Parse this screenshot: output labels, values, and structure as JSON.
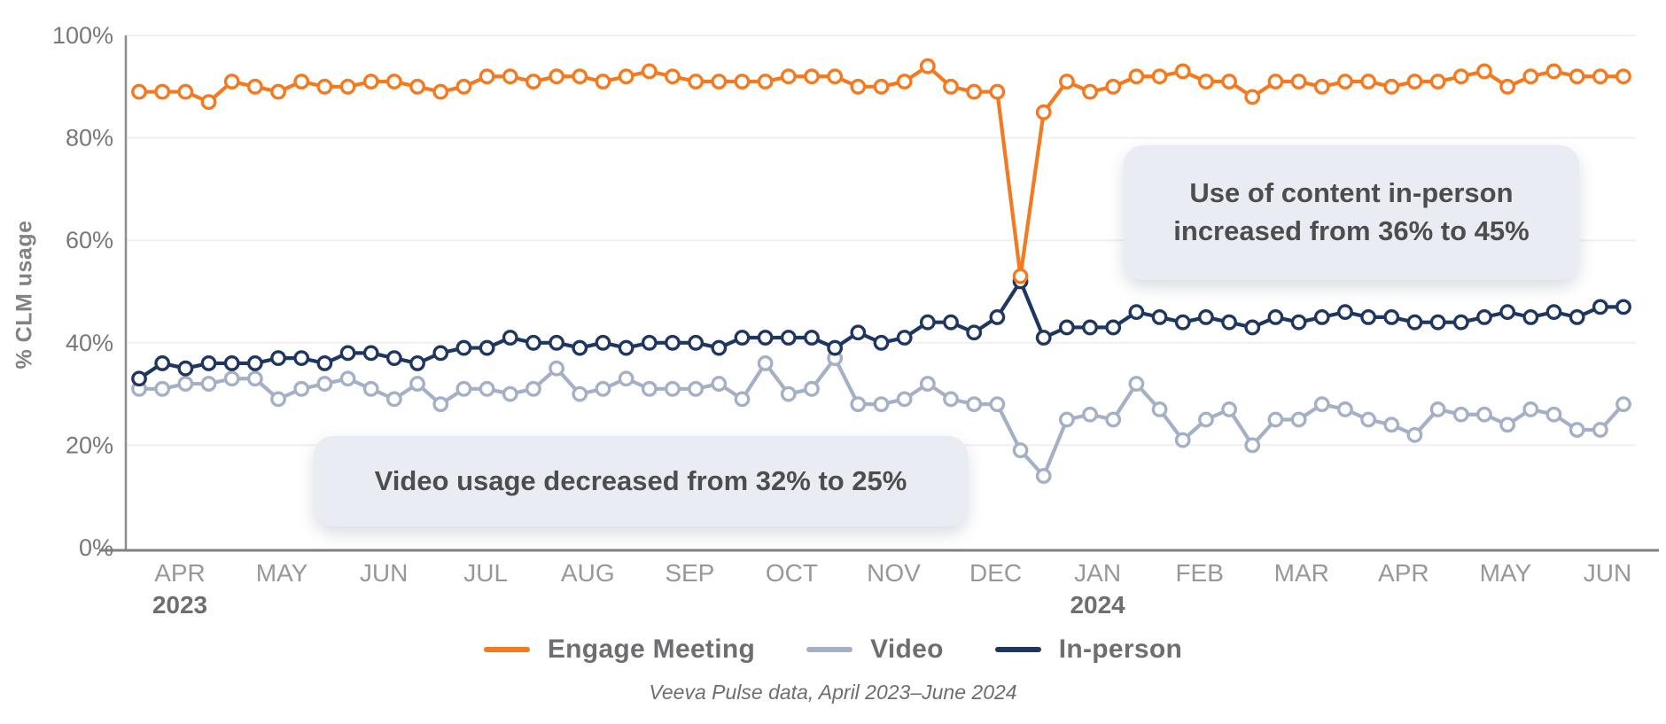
{
  "chart_data": {
    "type": "line",
    "ylabel": "% CLM usage",
    "ylim": [
      0,
      100
    ],
    "grid": true,
    "legend_position": "bottom",
    "y_ticks": [
      {
        "label": "0%",
        "value": 0
      },
      {
        "label": "20%",
        "value": 20
      },
      {
        "label": "40%",
        "value": 40
      },
      {
        "label": "60%",
        "value": 60
      },
      {
        "label": "80%",
        "value": 80
      },
      {
        "label": "100%",
        "value": 100
      }
    ],
    "x_months": [
      {
        "label": "APR",
        "year": "2023"
      },
      {
        "label": "MAY"
      },
      {
        "label": "JUN"
      },
      {
        "label": "JUL"
      },
      {
        "label": "AUG"
      },
      {
        "label": "SEP"
      },
      {
        "label": "OCT"
      },
      {
        "label": "NOV"
      },
      {
        "label": "DEC"
      },
      {
        "label": "JAN",
        "year": "2024"
      },
      {
        "label": "FEB"
      },
      {
        "label": "MAR"
      },
      {
        "label": "APR"
      },
      {
        "label": "MAY"
      },
      {
        "label": "JUN"
      }
    ],
    "x_unit": "week",
    "series": [
      {
        "name": "Engage Meeting",
        "color": "#F4791F",
        "values": [
          89,
          89,
          89,
          87,
          91,
          90,
          89,
          91,
          90,
          90,
          91,
          91,
          90,
          89,
          90,
          92,
          92,
          91,
          92,
          92,
          91,
          92,
          93,
          92,
          91,
          91,
          91,
          91,
          92,
          92,
          92,
          90,
          90,
          91,
          94,
          90,
          89,
          89,
          53,
          85,
          91,
          89,
          90,
          92,
          92,
          93,
          91,
          91,
          88,
          91,
          91,
          90,
          91,
          91,
          90,
          91,
          91,
          92,
          93,
          90,
          92,
          93,
          92,
          92,
          92
        ]
      },
      {
        "name": "Video",
        "color": "#A4B0C6",
        "values": [
          31,
          31,
          32,
          32,
          33,
          33,
          29,
          31,
          32,
          33,
          31,
          29,
          32,
          28,
          31,
          31,
          30,
          31,
          35,
          30,
          31,
          33,
          31,
          31,
          31,
          32,
          29,
          36,
          30,
          31,
          37,
          28,
          28,
          29,
          32,
          29,
          28,
          28,
          19,
          14,
          25,
          26,
          25,
          32,
          27,
          21,
          25,
          27,
          20,
          25,
          25,
          28,
          27,
          25,
          24,
          22,
          27,
          26,
          26,
          24,
          27,
          26,
          23,
          23,
          28
        ]
      },
      {
        "name": "In-person",
        "color": "#1F3760",
        "values": [
          33,
          36,
          35,
          36,
          36,
          36,
          37,
          37,
          36,
          38,
          38,
          37,
          36,
          38,
          39,
          39,
          41,
          40,
          40,
          39,
          40,
          39,
          40,
          40,
          40,
          39,
          41,
          41,
          41,
          41,
          39,
          42,
          40,
          41,
          44,
          44,
          42,
          45,
          52,
          41,
          43,
          43,
          43,
          46,
          45,
          44,
          45,
          44,
          43,
          45,
          44,
          45,
          46,
          45,
          45,
          44,
          44,
          44,
          45,
          46,
          45,
          46,
          45,
          47,
          47
        ]
      }
    ],
    "annotations": [
      {
        "id": "in-person",
        "text": "Use of content in-person increased from 36% to 45%"
      },
      {
        "id": "video",
        "text": "Video usage decreased from 32% to 25%"
      }
    ],
    "caption": "Veeva Pulse data, April 2023–June 2024"
  }
}
